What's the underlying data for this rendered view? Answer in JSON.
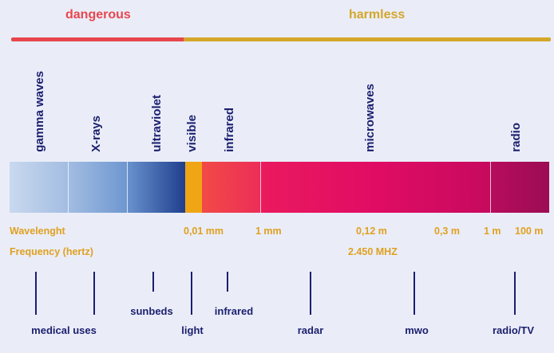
{
  "colors": {
    "danger": "#e8464e",
    "harmless": "#d4a62a",
    "orange_text": "#e0a020",
    "dark_navy": "#1b1f6e",
    "visible_band": "#f0a515"
  },
  "hazard": {
    "dangerous_label": "dangerous",
    "harmless_label": "harmless"
  },
  "bands": [
    {
      "name": "gamma waves"
    },
    {
      "name": "X-rays"
    },
    {
      "name": "ultraviolet"
    },
    {
      "name": "visible"
    },
    {
      "name": "infrared"
    },
    {
      "name": "microwaves"
    },
    {
      "name": "radio"
    }
  ],
  "wavelength": {
    "label": "Wavelenght",
    "marks": [
      "0,01 mm",
      "1 mm",
      "0,12 m",
      "0,3 m",
      "1 m",
      "100 m"
    ]
  },
  "frequency": {
    "label": "Frequency (hertz)",
    "value": "2.450 MHZ"
  },
  "uses": [
    {
      "label": "medical uses"
    },
    {
      "label": "sunbeds"
    },
    {
      "label": "light"
    },
    {
      "label": "infrared"
    },
    {
      "label": "radar"
    },
    {
      "label": "mwo"
    },
    {
      "label": "radio/TV"
    }
  ]
}
